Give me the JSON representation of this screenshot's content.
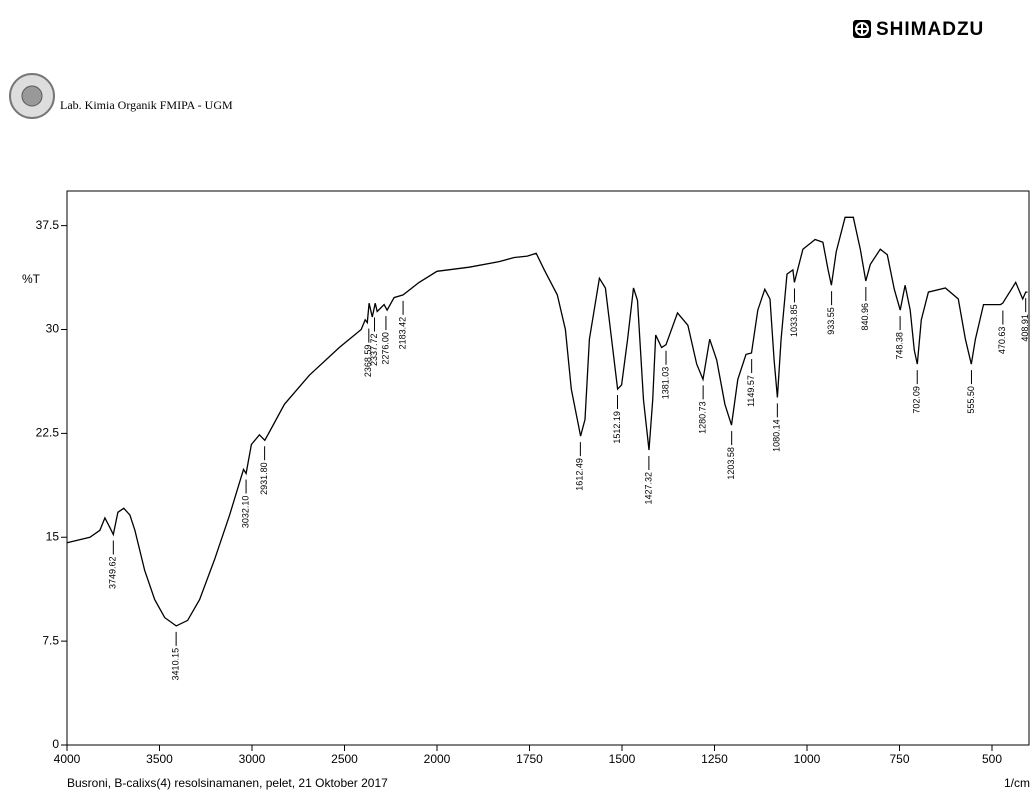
{
  "brand": "SHIMADZU",
  "lab": "Lab. Kimia Organik FMIPA - UGM",
  "chart_data": {
    "type": "line",
    "subtitle": "Busroni, B-calixs(4) resolsinamanen, pelet, 21 Oktober 2017",
    "ylabel": "%T",
    "xlabel": "1/cm",
    "color": "#000000",
    "xlim": [
      4000,
      400
    ],
    "x_break": 2000,
    "xticks": [
      4000,
      3500,
      3000,
      2500,
      2000,
      1750,
      1500,
      1250,
      1000,
      750,
      500
    ],
    "ylim": [
      0,
      40
    ],
    "yticks": [
      0,
      7.5,
      15,
      22.5,
      30,
      37.5
    ],
    "x": [
      4000,
      3876,
      3822,
      3795,
      3768,
      3750,
      3725,
      3693,
      3660,
      3633,
      3580,
      3526,
      3472,
      3410,
      3348,
      3283,
      3202,
      3121,
      3046,
      3032,
      3003,
      2960,
      2931,
      2906,
      2825,
      2690,
      2528,
      2410,
      2388,
      2377,
      2367,
      2350,
      2334,
      2323,
      2286,
      2270,
      2232,
      2183,
      2097,
      2000,
      1913,
      1832,
      1791,
      1756,
      1732,
      1710,
      1675,
      1653,
      1637,
      1612,
      1600,
      1588,
      1561,
      1545,
      1528,
      1512,
      1501,
      1485,
      1469,
      1458,
      1442,
      1427,
      1417,
      1409,
      1393,
      1381,
      1350,
      1322,
      1298,
      1281,
      1263,
      1244,
      1222,
      1204,
      1187,
      1165,
      1150,
      1133,
      1114,
      1100,
      1089,
      1080,
      1070,
      1054,
      1038,
      1034,
      1011,
      978,
      957,
      943,
      934,
      921,
      897,
      875,
      856,
      841,
      829,
      802,
      783,
      764,
      748,
      735,
      721,
      710,
      702,
      691,
      672,
      626,
      591,
      572,
      556,
      545,
      523,
      477,
      471,
      436,
      417,
      409,
      404
    ],
    "values": [
      14.6,
      15.0,
      15.5,
      16.4,
      15.7,
      15.2,
      16.8,
      17.1,
      16.6,
      15.5,
      12.6,
      10.5,
      9.2,
      8.6,
      9.0,
      10.5,
      13.4,
      16.6,
      19.9,
      19.6,
      21.7,
      22.4,
      22.0,
      22.6,
      24.6,
      26.7,
      28.7,
      30.0,
      30.7,
      30.5,
      31.9,
      30.9,
      31.9,
      31.3,
      31.8,
      31.4,
      32.3,
      32.5,
      33.4,
      34.2,
      34.5,
      34.9,
      35.2,
      35.3,
      35.5,
      34.3,
      32.5,
      30.0,
      25.7,
      22.3,
      23.5,
      29.3,
      33.7,
      33.0,
      29.3,
      25.7,
      26.0,
      29.3,
      33.0,
      32.1,
      24.9,
      21.3,
      24.9,
      29.6,
      28.7,
      28.9,
      31.2,
      30.3,
      27.5,
      26.4,
      29.3,
      27.8,
      24.6,
      23.1,
      26.4,
      28.2,
      28.3,
      31.4,
      32.9,
      32.2,
      27.8,
      25.1,
      29.3,
      34.0,
      34.3,
      33.4,
      35.8,
      36.5,
      36.3,
      34.3,
      33.2,
      35.6,
      38.1,
      38.1,
      35.8,
      33.5,
      34.7,
      35.8,
      35.4,
      32.9,
      31.4,
      33.2,
      31.4,
      28.5,
      27.5,
      30.7,
      32.7,
      33.0,
      32.2,
      29.3,
      27.5,
      29.3,
      31.8,
      31.8,
      31.9,
      33.4,
      32.2,
      32.7,
      32.7
    ],
    "peaks": [
      {
        "x": 3749.62,
        "y": 15.2,
        "label": "3749.62"
      },
      {
        "x": 3410.15,
        "y": 8.6,
        "label": "3410.15"
      },
      {
        "x": 3032.1,
        "y": 19.6,
        "label": "3032.10"
      },
      {
        "x": 2931.8,
        "y": 22.0,
        "label": "2931.80"
      },
      {
        "x": 2368.59,
        "y": 30.5,
        "label": "2368.59"
      },
      {
        "x": 2337.72,
        "y": 31.3,
        "label": "2337.72"
      },
      {
        "x": 2276.0,
        "y": 31.4,
        "label": "2276.00"
      },
      {
        "x": 2183.42,
        "y": 32.5,
        "label": "2183.42"
      },
      {
        "x": 1612.49,
        "y": 22.3,
        "label": "1612.49"
      },
      {
        "x": 1512.19,
        "y": 25.7,
        "label": "1512.19"
      },
      {
        "x": 1427.32,
        "y": 21.3,
        "label": "1427.32"
      },
      {
        "x": 1381.03,
        "y": 28.9,
        "label": "1381.03"
      },
      {
        "x": 1280.73,
        "y": 26.4,
        "label": "1280.73"
      },
      {
        "x": 1203.58,
        "y": 23.1,
        "label": "1203.58"
      },
      {
        "x": 1149.57,
        "y": 28.3,
        "label": "1149.57"
      },
      {
        "x": 1080.14,
        "y": 25.1,
        "label": "1080.14"
      },
      {
        "x": 1033.85,
        "y": 33.4,
        "label": "1033.85"
      },
      {
        "x": 933.55,
        "y": 33.2,
        "label": "933.55"
      },
      {
        "x": 840.96,
        "y": 33.5,
        "label": "840.96"
      },
      {
        "x": 748.38,
        "y": 31.4,
        "label": "748.38"
      },
      {
        "x": 702.09,
        "y": 27.5,
        "label": "702.09"
      },
      {
        "x": 555.5,
        "y": 27.5,
        "label": "555.50"
      },
      {
        "x": 470.63,
        "y": 31.8,
        "label": "470.63"
      },
      {
        "x": 408.91,
        "y": 32.7,
        "label": "408.91"
      }
    ]
  }
}
